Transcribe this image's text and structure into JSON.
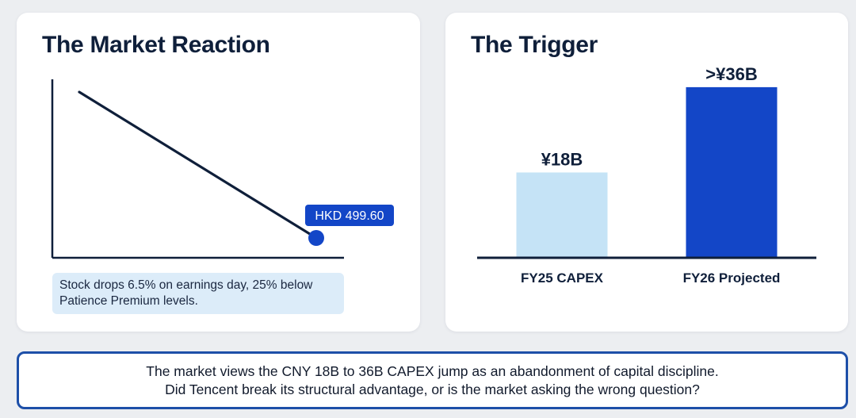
{
  "left_panel": {
    "title": "The Market Reaction",
    "callout": "Stock drops 6.5% on earnings day, 25% below Patience Premium levels."
  },
  "right_panel": {
    "title": "The Trigger"
  },
  "chart_data": [
    {
      "type": "line",
      "series": [
        {
          "points": [
            {
              "x": 0,
              "y": 1.0
            },
            {
              "x": 1,
              "y": 0.0
            }
          ]
        }
      ],
      "end_label": "HKD 499.60",
      "grid": false
    },
    {
      "type": "bar",
      "categories": [
        "FY25 CAPEX",
        "FY26 Projected"
      ],
      "values": [
        18,
        36
      ],
      "data_labels": [
        "¥18B",
        ">¥36B"
      ],
      "colors": [
        "#c5e3f6",
        "#1346c7"
      ],
      "ylim": [
        0,
        40
      ],
      "grid": false
    }
  ],
  "banner": {
    "line1": "The market views the CNY 18B to 36B CAPEX jump as an abandonment of capital discipline.",
    "line2": "Did Tencent break its structural advantage, or is the market asking the wrong question?"
  },
  "colors": {
    "accent": "#1346c7",
    "light_bar": "#c5e3f6",
    "axis": "#0f1f3a",
    "callout_bg": "#dcecf9",
    "banner_border": "#1d4fa8"
  }
}
